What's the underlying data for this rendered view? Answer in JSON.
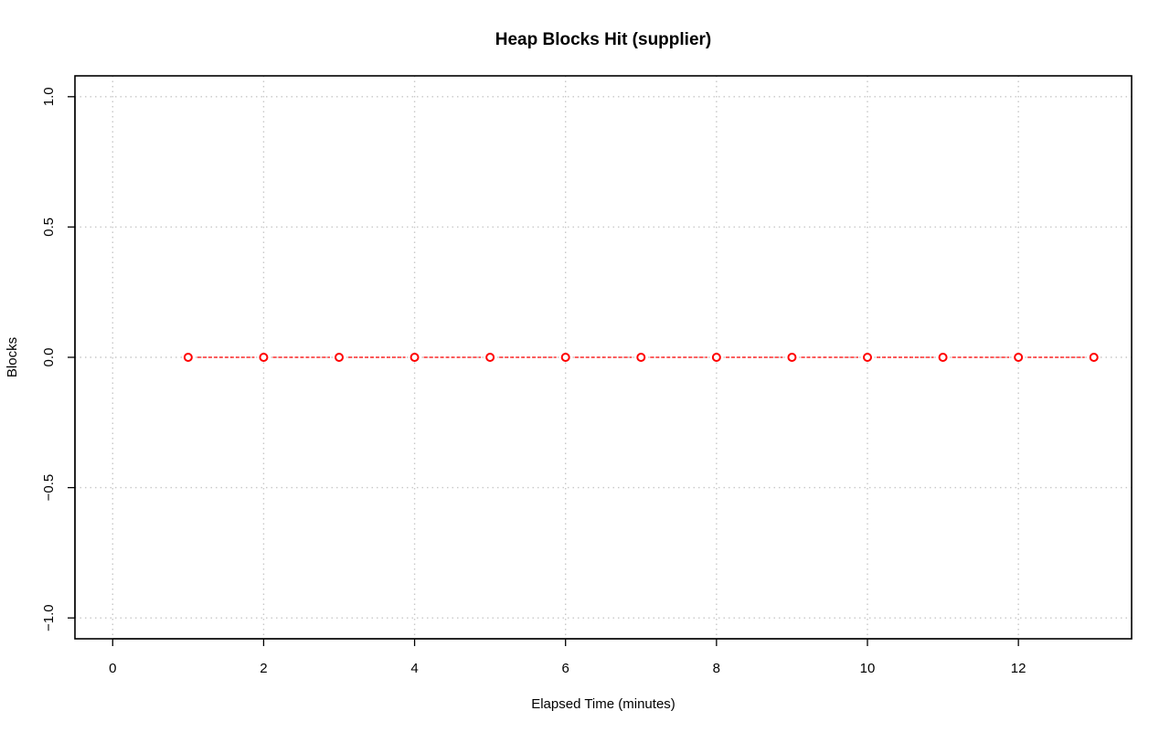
{
  "chart_data": {
    "type": "line",
    "title": "Heap Blocks Hit (supplier)",
    "xlabel": "Elapsed Time (minutes)",
    "ylabel": "Blocks",
    "xlim": [
      -0.5,
      13.5
    ],
    "ylim": [
      -1.08,
      1.08
    ],
    "x_ticks": [
      0,
      2,
      4,
      6,
      8,
      10,
      12
    ],
    "y_ticks": [
      -1.0,
      -0.5,
      0.0,
      0.5,
      1.0
    ],
    "x_tick_labels": [
      "0",
      "2",
      "4",
      "6",
      "8",
      "10",
      "12"
    ],
    "y_tick_labels": [
      "−1.0",
      "−0.5",
      "0.0",
      "0.5",
      "1.0"
    ],
    "grid": true,
    "series": [
      {
        "color": "#ff0000",
        "x": [
          1,
          2,
          3,
          4,
          5,
          6,
          7,
          8,
          9,
          10,
          11,
          12,
          13
        ],
        "y": [
          0,
          0,
          0,
          0,
          0,
          0,
          0,
          0,
          0,
          0,
          0,
          0,
          0
        ]
      }
    ]
  }
}
